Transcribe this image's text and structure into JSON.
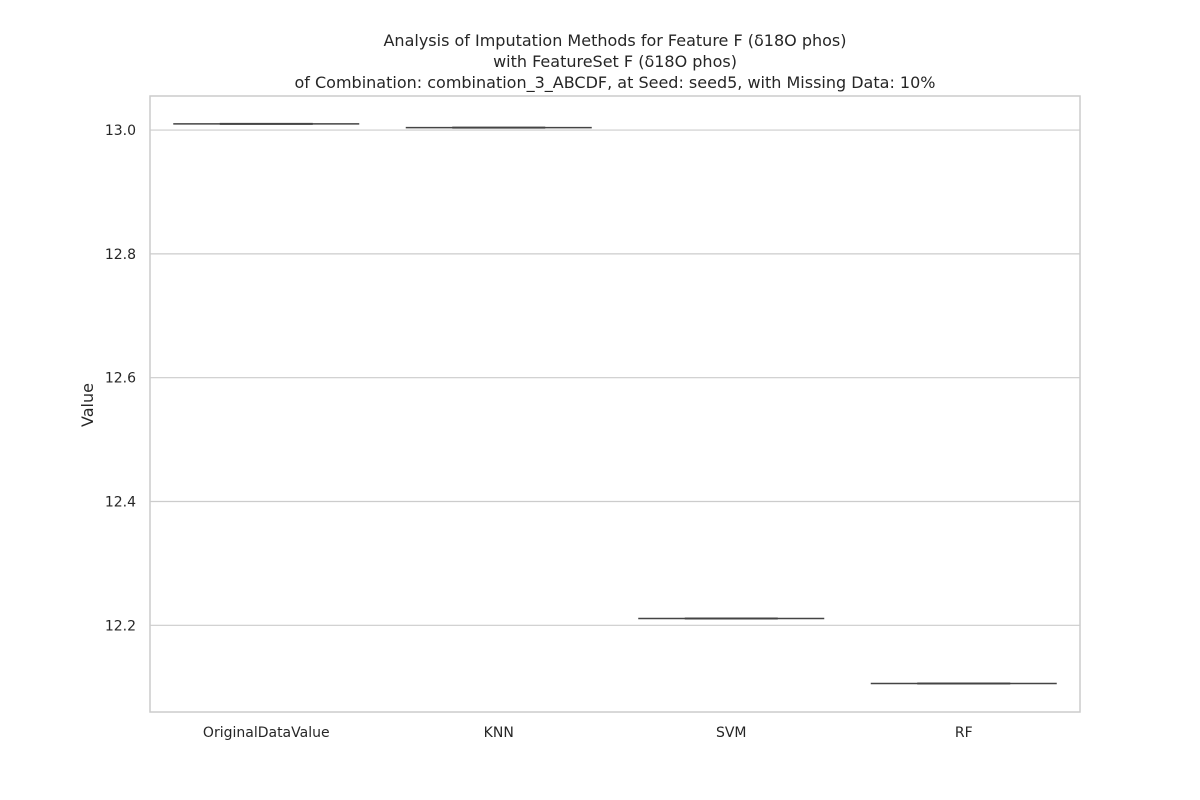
{
  "chart_data": {
    "type": "box",
    "title_lines": [
      "Analysis of Imputation Methods for Feature F (δ18O phos)",
      "with FeatureSet F (δ18O phos)",
      "of Combination: combination_3_ABCDF, at Seed: seed5, with Missing Data: 10%"
    ],
    "xlabel": "",
    "ylabel": "Value",
    "categories": [
      "OriginalDataValue",
      "KNN",
      "SVM",
      "RF"
    ],
    "values": [
      13.01,
      13.004,
      12.211,
      12.106
    ],
    "ylim": [
      12.06,
      13.055
    ],
    "yticks": [
      12.2,
      12.4,
      12.6,
      12.8,
      13.0
    ],
    "ytick_labels": [
      "12.2",
      "12.4",
      "12.6",
      "12.8",
      "13.0"
    ],
    "grid": "horizontal",
    "colors": {
      "grid": "#cccccc",
      "frame": "#cccccc",
      "box_line": "#444444",
      "text": "#262626"
    }
  }
}
